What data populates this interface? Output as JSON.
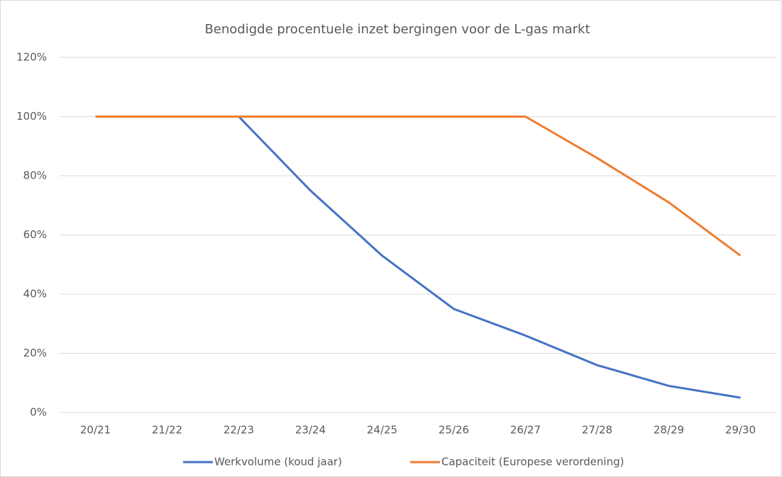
{
  "chart_data": {
    "type": "line",
    "title": "Benodigde procentuele inzet bergingen voor de L-gas markt",
    "categories": [
      "20/21",
      "21/22",
      "22/23",
      "23/24",
      "24/25",
      "25/26",
      "26/27",
      "27/28",
      "28/29",
      "29/30"
    ],
    "series": [
      {
        "name": "Werkvolume (koud jaar)",
        "color": "#4472c4",
        "values": [
          100,
          100,
          100,
          75,
          53,
          35,
          26,
          16,
          9,
          5
        ]
      },
      {
        "name": "Capaciteit (Europese verordening)",
        "color": "#ed7d31",
        "values": [
          100,
          100,
          100,
          100,
          100,
          100,
          100,
          86,
          71,
          53
        ]
      }
    ],
    "ylim": [
      0,
      120
    ],
    "yticks": [
      {
        "value": 0,
        "label": "0%"
      },
      {
        "value": 20,
        "label": "20%"
      },
      {
        "value": 40,
        "label": "40%"
      },
      {
        "value": 60,
        "label": "60%"
      },
      {
        "value": 80,
        "label": "80%"
      },
      {
        "value": 100,
        "label": "100%"
      },
      {
        "value": 120,
        "label": "120%"
      }
    ],
    "grid": true,
    "legend": "bottom"
  }
}
